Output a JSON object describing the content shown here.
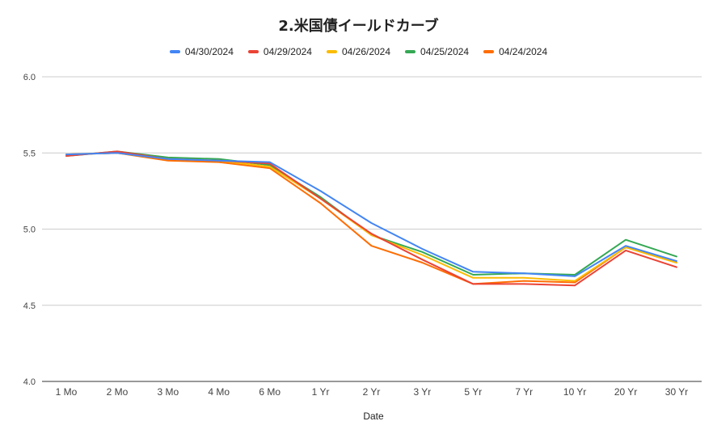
{
  "chart_data": {
    "type": "line",
    "title": "2.米国債イールドカーブ",
    "xlabel": "Date",
    "ylabel": "",
    "categories": [
      "1 Mo",
      "2 Mo",
      "3 Mo",
      "4 Mo",
      "6 Mo",
      "1 Yr",
      "2 Yr",
      "3 Yr",
      "5 Yr",
      "7 Yr",
      "10 Yr",
      "20 Yr",
      "30 Yr"
    ],
    "ylim": [
      4.0,
      6.0
    ],
    "yticks": [
      "4.0",
      "4.5",
      "5.0",
      "5.5",
      "6.0"
    ],
    "grid": true,
    "legend_position": "top",
    "series": [
      {
        "name": "04/30/2024",
        "color": "#4285f4",
        "values": [
          5.49,
          5.5,
          5.46,
          5.45,
          5.44,
          5.25,
          5.04,
          4.87,
          4.72,
          4.71,
          4.69,
          4.89,
          4.79
        ]
      },
      {
        "name": "04/29/2024",
        "color": "#ea4335",
        "values": [
          5.48,
          5.51,
          5.46,
          5.45,
          5.43,
          5.2,
          4.97,
          4.8,
          4.64,
          4.64,
          4.63,
          4.86,
          4.75
        ]
      },
      {
        "name": "04/26/2024",
        "color": "#fbbc04",
        "values": [
          5.49,
          5.5,
          5.46,
          5.45,
          5.41,
          5.2,
          4.96,
          4.83,
          4.68,
          4.68,
          4.66,
          4.88,
          4.78
        ]
      },
      {
        "name": "04/25/2024",
        "color": "#34a853",
        "values": [
          5.48,
          5.51,
          5.47,
          5.46,
          5.42,
          5.21,
          4.96,
          4.85,
          4.7,
          4.71,
          4.7,
          4.93,
          4.82
        ]
      },
      {
        "name": "04/24/2024",
        "color": "#ff6d01",
        "values": [
          5.49,
          5.5,
          5.45,
          5.44,
          5.4,
          5.17,
          4.89,
          4.78,
          4.64,
          4.66,
          4.65,
          4.88,
          4.78
        ]
      }
    ]
  }
}
